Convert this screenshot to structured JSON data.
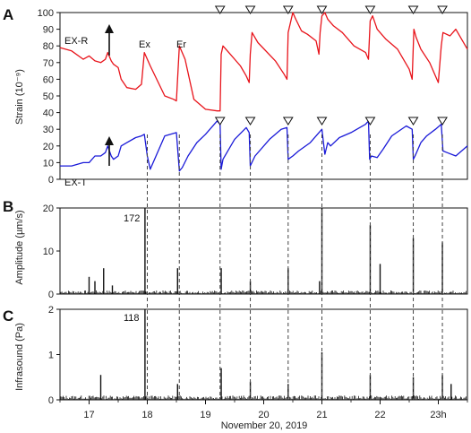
{
  "chart_data": [
    {
      "panel": "A",
      "type": "line",
      "ylabel": "Strain (10⁻⁹)",
      "ylim": [
        0,
        100
      ],
      "yticks": [
        0,
        10,
        20,
        30,
        40,
        50,
        60,
        70,
        80,
        90,
        100
      ],
      "x_unit": "hour",
      "series": [
        {
          "name": "EX-R",
          "color": "#e8141b",
          "x": [
            16.5,
            16.7,
            16.9,
            17.0,
            17.1,
            17.2,
            17.28,
            17.32,
            17.38,
            17.42,
            17.5,
            17.55,
            17.65,
            17.8,
            17.9,
            17.95,
            18.05,
            18.3,
            18.45,
            18.5,
            18.55,
            18.65,
            18.8,
            19.0,
            19.2,
            19.25,
            19.27,
            19.3,
            19.4,
            19.6,
            19.7,
            19.75,
            19.77,
            19.8,
            19.9,
            20.2,
            20.35,
            20.4,
            20.42,
            20.5,
            20.55,
            20.65,
            20.75,
            20.9,
            20.95,
            20.97,
            21.0,
            21.05,
            21.1,
            21.2,
            21.35,
            21.55,
            21.75,
            21.8,
            21.83,
            21.87,
            21.95,
            22.1,
            22.3,
            22.5,
            22.55,
            22.58,
            22.62,
            22.7,
            22.85,
            22.95,
            23.0,
            23.05,
            23.08,
            23.2,
            23.3,
            23.5
          ],
          "y": [
            79,
            77,
            72,
            74,
            71,
            70,
            72,
            76,
            71,
            69,
            67,
            60,
            55,
            54,
            57,
            76,
            68,
            50,
            48,
            47,
            80,
            72,
            48,
            42,
            41,
            41,
            75,
            80,
            76,
            68,
            62,
            58,
            75,
            88,
            82,
            71,
            63,
            60,
            88,
            100,
            96,
            89,
            87,
            83,
            75,
            88,
            98,
            100,
            96,
            92,
            88,
            80,
            76,
            72,
            95,
            98,
            90,
            84,
            78,
            66,
            60,
            90,
            85,
            78,
            70,
            62,
            58,
            80,
            88,
            86,
            90,
            78
          ]
        },
        {
          "name": "EX-T",
          "color": "#1a1ad8",
          "x": [
            16.5,
            16.7,
            16.9,
            17.0,
            17.1,
            17.2,
            17.28,
            17.32,
            17.38,
            17.42,
            17.5,
            17.55,
            17.65,
            17.8,
            17.9,
            17.95,
            18.0,
            18.05,
            18.3,
            18.5,
            18.55,
            18.6,
            18.7,
            18.85,
            19.0,
            19.2,
            19.25,
            19.27,
            19.3,
            19.5,
            19.7,
            19.75,
            19.77,
            19.85,
            20.1,
            20.3,
            20.4,
            20.42,
            20.5,
            20.6,
            20.8,
            20.95,
            21.0,
            21.05,
            21.1,
            21.15,
            21.3,
            21.5,
            21.75,
            21.8,
            21.82,
            21.85,
            21.95,
            22.05,
            22.2,
            22.45,
            22.55,
            22.57,
            22.6,
            22.7,
            22.8,
            22.95,
            23.05,
            23.08,
            23.15,
            23.3,
            23.5
          ],
          "y": [
            8,
            8,
            10,
            10,
            14,
            14,
            16,
            20,
            14,
            12,
            14,
            20,
            22,
            25,
            26,
            27,
            14,
            6,
            26,
            28,
            5,
            7,
            14,
            22,
            27,
            35,
            33,
            6,
            12,
            24,
            31,
            28,
            8,
            14,
            24,
            30,
            31,
            12,
            14,
            17,
            22,
            28,
            30,
            15,
            22,
            20,
            25,
            28,
            33,
            35,
            12,
            14,
            13,
            18,
            26,
            32,
            30,
            12,
            14,
            22,
            26,
            30,
            33,
            17,
            16,
            14,
            20
          ]
        }
      ],
      "labels": [
        "EX-R",
        "EX-T",
        "Ex",
        "Er"
      ],
      "marker_hours": [
        19.25,
        19.77,
        20.42,
        21.0,
        21.83,
        22.57,
        23.07
      ]
    },
    {
      "panel": "B",
      "type": "line",
      "ylabel": "Amplitude (µm/s)",
      "ylim": [
        0,
        20
      ],
      "yticks": [
        0,
        10,
        20
      ],
      "annotation": "172",
      "spikes": [
        {
          "x": 17.96,
          "y": 20
        },
        {
          "x": 18.52,
          "y": 6
        },
        {
          "x": 19.27,
          "y": 6
        },
        {
          "x": 19.77,
          "y": 3
        },
        {
          "x": 20.42,
          "y": 6
        },
        {
          "x": 20.96,
          "y": 3
        },
        {
          "x": 21.0,
          "y": 20
        },
        {
          "x": 21.83,
          "y": 16
        },
        {
          "x": 22.0,
          "y": 7
        },
        {
          "x": 22.57,
          "y": 13
        },
        {
          "x": 23.07,
          "y": 12
        },
        {
          "x": 17.0,
          "y": 4
        },
        {
          "x": 17.1,
          "y": 3
        },
        {
          "x": 17.25,
          "y": 6
        },
        {
          "x": 17.4,
          "y": 2
        }
      ]
    },
    {
      "panel": "C",
      "type": "line",
      "ylabel": "Infrasound (Pa)",
      "ylim": [
        0,
        2
      ],
      "yticks": [
        0,
        1,
        2
      ],
      "annotation": "118",
      "spikes": [
        {
          "x": 17.96,
          "y": 2
        },
        {
          "x": 17.2,
          "y": 0.55
        },
        {
          "x": 18.52,
          "y": 0.35
        },
        {
          "x": 19.27,
          "y": 0.7
        },
        {
          "x": 19.77,
          "y": 0.4
        },
        {
          "x": 20.42,
          "y": 0.35
        },
        {
          "x": 21.0,
          "y": 1.05
        },
        {
          "x": 21.83,
          "y": 0.55
        },
        {
          "x": 22.57,
          "y": 0.5
        },
        {
          "x": 23.07,
          "y": 0.55
        },
        {
          "x": 23.22,
          "y": 0.35
        }
      ]
    }
  ],
  "xaxis": {
    "label": "November 20, 2019",
    "xlim": [
      16.5,
      23.5
    ],
    "tick_values": [
      17,
      18,
      19,
      20,
      21,
      22,
      23
    ],
    "tick_labels": [
      "17",
      "18",
      "19",
      "20",
      "21",
      "22",
      "23h"
    ]
  },
  "dashed_lines": [
    18.0,
    18.55,
    19.25,
    19.77,
    20.42,
    21.0,
    21.83,
    22.57,
    23.07
  ],
  "colors": {
    "exr": "#e8141b",
    "ext": "#1a1ad8",
    "signal": "#111111"
  }
}
